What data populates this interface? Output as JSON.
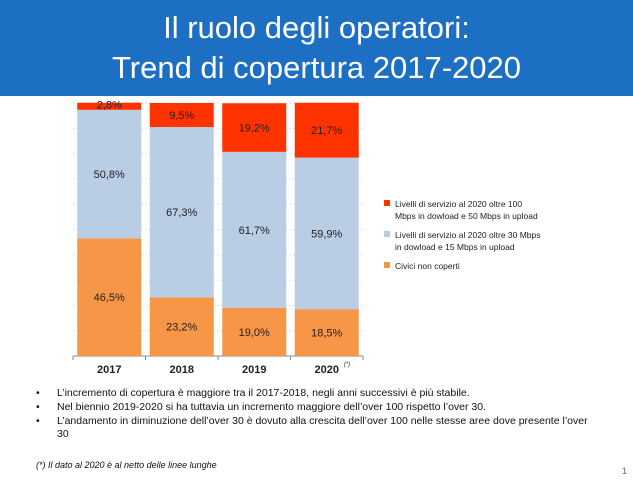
{
  "header": {
    "title_line1": "Il ruolo degli operatori:",
    "title_line2": "Trend di copertura 2017-2020",
    "background": "#1d6fc4"
  },
  "chart_data": {
    "type": "bar",
    "stacked": true,
    "categories": [
      "2017",
      "2018",
      "2019",
      "2020"
    ],
    "category_superscripts": [
      "",
      "",
      "",
      "(*)"
    ],
    "ylim": [
      0,
      100
    ],
    "grid": true,
    "legend_position": "right",
    "series": [
      {
        "name": "Civici non coperti",
        "values": [
          46.5,
          23.2,
          19.0,
          18.5
        ],
        "labels": [
          "46,5%",
          "23,2%",
          "19,0%",
          "18,5%"
        ],
        "color": "#f79646"
      },
      {
        "name": "Livelli di servizio al 2020 oltre 30 Mbps in dowload e 15 Mbps in upload",
        "values": [
          50.8,
          67.3,
          61.7,
          59.9
        ],
        "labels": [
          "50,8%",
          "67,3%",
          "61,7%",
          "59,9%"
        ],
        "color": "#b9cde5"
      },
      {
        "name": "Livelli di servizio al 2020 oltre 100 Mbps in dowload e 50 Mbps in upload",
        "values": [
          2.8,
          9.5,
          19.2,
          21.7
        ],
        "labels": [
          "2,8%",
          "9,5%",
          "19,2%",
          "21,7%"
        ],
        "color": "#ff3300"
      }
    ]
  },
  "legend": [
    {
      "line1": "Livelli di servizio al 2020 oltre 100",
      "line2": "Mbps in dowload e 50 Mbps in upload",
      "color": "#ff3300"
    },
    {
      "line1": "Livelli di servizio al 2020 oltre 30 Mbps",
      "line2": "in dowload e 15 Mbps in upload",
      "color": "#b9cde5"
    },
    {
      "line1": "Civici non coperti",
      "line2": "",
      "color": "#f79646"
    }
  ],
  "notes": [
    "L’incremento di copertura è maggiore tra il 2017-2018, negli anni successivi è più stabile.",
    "Nel biennio 2019-2020 si ha tuttavia un incremento maggiore dell’over 100  rispetto l’over 30.",
    "L’andamento in diminuzione dell’over 30 è dovuto alla crescita dell’over 100 nelle stesse aree dove presente l’over 30"
  ],
  "footnote": "(*) Il dato al 2020 è al netto delle linee lunghe",
  "page_number": "1"
}
